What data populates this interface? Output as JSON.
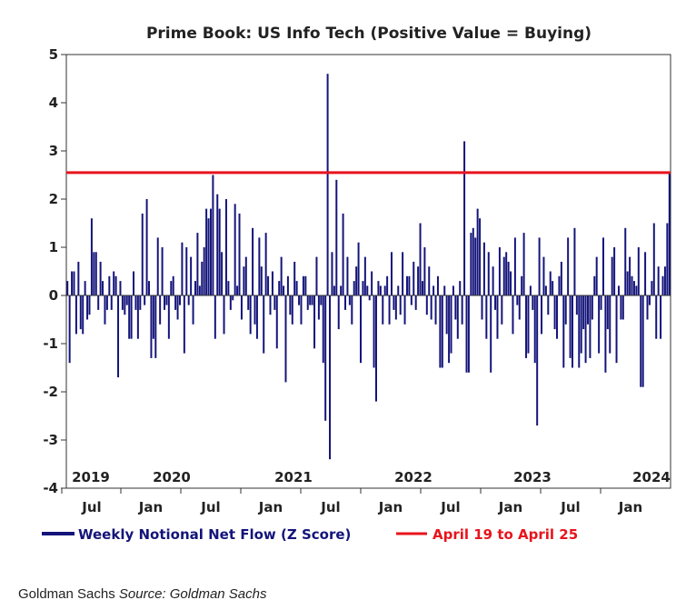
{
  "chart_data": {
    "type": "bar",
    "title": "Prime Book: US Info Tech (Positive Value = Buying)",
    "ylim": [
      -4,
      5
    ],
    "yticks": [
      5,
      4,
      3,
      2,
      1,
      0,
      -1,
      -2,
      -3,
      -4
    ],
    "year_labels": [
      "2019",
      "2020",
      "2021",
      "2022",
      "2023",
      "2024"
    ],
    "month_labels": [
      "Jul",
      "Jan",
      "Jul",
      "Jan",
      "Jul",
      "Jan",
      "Jul",
      "Jan",
      "Jul",
      "Jan"
    ],
    "reference_line": {
      "name": "April 19 to April 25",
      "value": 2.55,
      "color": "#e8141c"
    },
    "series": [
      {
        "name": "Weekly Notional Net Flow (Z Score)",
        "color": "#14147a",
        "values": [
          0.3,
          -1.4,
          0.5,
          0.5,
          -0.8,
          0.7,
          -0.7,
          -0.8,
          0.3,
          -0.5,
          -0.4,
          1.6,
          0.9,
          0.9,
          -0.3,
          0.7,
          0.3,
          -0.6,
          -0.3,
          0.4,
          -0.3,
          0.5,
          0.4,
          -1.7,
          0.3,
          -0.3,
          -0.4,
          -0.2,
          -0.9,
          -0.9,
          0.5,
          -0.3,
          -0.9,
          -0.3,
          1.7,
          -0.2,
          2.0,
          0.3,
          -1.3,
          -0.9,
          -1.3,
          1.2,
          -0.6,
          1.0,
          -0.3,
          -0.2,
          -0.9,
          0.3,
          0.4,
          -0.3,
          -0.5,
          -0.2,
          1.1,
          -1.2,
          1.0,
          -0.2,
          0.8,
          -0.6,
          0.3,
          1.3,
          0.2,
          0.7,
          1.0,
          1.8,
          1.6,
          1.8,
          2.5,
          -0.9,
          2.1,
          1.8,
          0.9,
          -0.8,
          2.0,
          0.3,
          -0.3,
          -0.1,
          1.9,
          0.2,
          1.7,
          -0.5,
          0.6,
          0.8,
          -0.3,
          -0.8,
          1.4,
          -0.6,
          -0.9,
          1.2,
          0.6,
          -1.2,
          1.3,
          0.4,
          -0.4,
          0.5,
          -0.3,
          -1.1,
          0.3,
          0.8,
          0.2,
          -1.8,
          0.4,
          -0.4,
          -0.6,
          0.7,
          0.3,
          -0.2,
          -0.6,
          0.4,
          0.4,
          -0.3,
          -0.2,
          -0.2,
          -1.1,
          0.8,
          -0.5,
          -0.2,
          -1.4,
          -2.6,
          4.6,
          -3.4,
          0.9,
          0.2,
          2.4,
          -0.7,
          0.2,
          1.7,
          -0.3,
          0.8,
          -0.2,
          -0.6,
          0.3,
          0.6,
          1.1,
          -1.4,
          0.3,
          0.8,
          0.2,
          -0.1,
          0.5,
          -1.5,
          -2.2,
          0.3,
          0.2,
          -0.6,
          0.2,
          0.4,
          -0.6,
          0.9,
          -0.3,
          -0.5,
          0.2,
          -0.4,
          0.9,
          -0.6,
          0.4,
          0.4,
          -0.2,
          0.7,
          -0.3,
          0.6,
          1.5,
          0.3,
          1.0,
          -0.4,
          0.6,
          -0.5,
          0.2,
          -0.6,
          0.4,
          -1.5,
          -1.5,
          0.2,
          -0.8,
          -1.4,
          -1.2,
          0.2,
          -0.5,
          -0.9,
          0.3,
          -0.6,
          3.2,
          -1.6,
          -1.6,
          1.3,
          1.4,
          1.2,
          1.8,
          1.6,
          -0.5,
          1.1,
          -0.9,
          0.9,
          -1.6,
          0.6,
          -0.3,
          -0.9,
          1.0,
          -0.6,
          0.8,
          0.9,
          0.7,
          0.5,
          -0.8,
          1.2,
          -0.2,
          -0.5,
          0.4,
          1.3,
          -1.3,
          -1.2,
          0.2,
          -0.3,
          -1.4,
          -2.7,
          1.2,
          -0.8,
          0.8,
          0.2,
          -0.4,
          0.5,
          0.3,
          -0.7,
          -0.9,
          0.4,
          0.7,
          -1.5,
          -0.6,
          1.2,
          -1.3,
          -1.5,
          1.4,
          -0.4,
          -1.5,
          -1.2,
          -0.7,
          -1.4,
          -0.6,
          -1.3,
          -0.5,
          0.4,
          0.8,
          -1.2,
          -0.3,
          1.2,
          -1.6,
          -0.7,
          -1.2,
          0.8,
          1.0,
          -1.4,
          0.2,
          -0.5,
          -0.5,
          1.4,
          0.5,
          0.8,
          0.4,
          0.3,
          0.2,
          1.0,
          -1.9,
          -1.9,
          0.9,
          -0.5,
          -0.2,
          0.3,
          1.5,
          -0.9,
          0.6,
          -0.9,
          0.4,
          0.6,
          1.5,
          2.55
        ]
      }
    ]
  },
  "footer": {
    "publisher": "Goldman Sachs",
    "source": "Source: Goldman Sachs"
  }
}
